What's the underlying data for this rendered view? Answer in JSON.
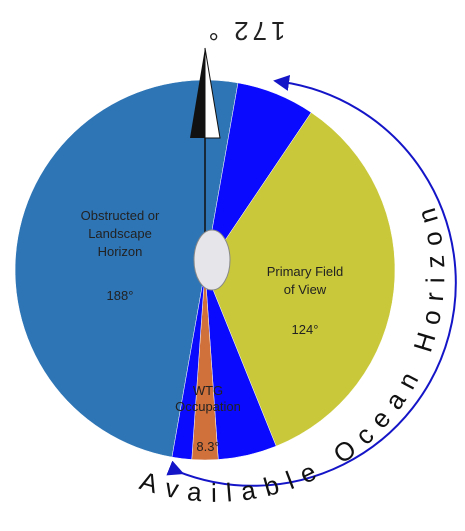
{
  "bearing": "172 °",
  "arc_label": "Available Ocean Horizon",
  "sectors": [
    {
      "label": [
        "Obstructed or",
        "Landscape",
        "Horizon"
      ],
      "angle": "188°"
    },
    {
      "label": [
        "Primary Field",
        "of View"
      ],
      "angle": "124°"
    },
    {
      "label": [
        "WTG",
        "Occupation"
      ],
      "angle": "8.3°"
    }
  ]
}
